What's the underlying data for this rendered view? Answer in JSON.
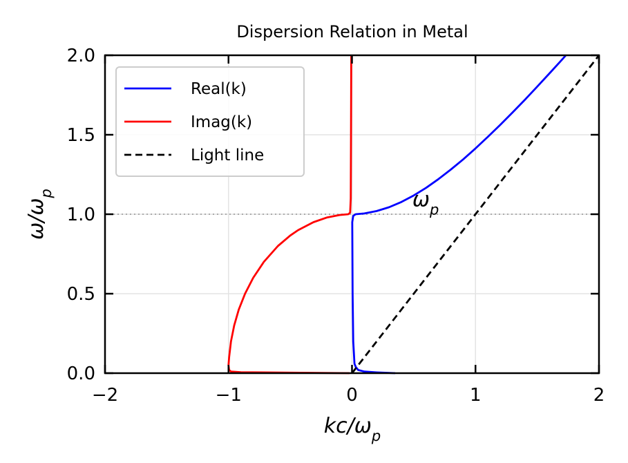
{
  "chart_data": {
    "type": "line",
    "title": "Dispersion Relation in Metal",
    "xlabel": "kc/ωp",
    "ylabel": "ω/ωp",
    "xlim": [
      -2,
      2
    ],
    "ylim": [
      0,
      2
    ],
    "xticks": [
      {
        "v": -2,
        "label": "−2"
      },
      {
        "v": -1,
        "label": "−1"
      },
      {
        "v": 0,
        "label": "0"
      },
      {
        "v": 1,
        "label": "1"
      },
      {
        "v": 2,
        "label": "2"
      }
    ],
    "yticks": [
      {
        "v": 0,
        "label": "0.0"
      },
      {
        "v": 0.5,
        "label": "0.5"
      },
      {
        "v": 1,
        "label": "1.0"
      },
      {
        "v": 1.5,
        "label": "1.5"
      },
      {
        "v": 2,
        "label": "2.0"
      }
    ],
    "grid": true,
    "legend_position": "top-left",
    "hline": {
      "y": 1.0,
      "style": "dotted",
      "color": "#aaaaaa"
    },
    "annotation": {
      "text": "ωp",
      "x": 0.5,
      "y": 1.05
    },
    "series": [
      {
        "name": "Real(k)",
        "color": "#0000ff",
        "style": "solid",
        "points": [
          [
            0.35,
            0.0
          ],
          [
            0.2,
            0.005
          ],
          [
            0.1,
            0.01
          ],
          [
            0.05,
            0.02
          ],
          [
            0.03,
            0.04
          ],
          [
            0.02,
            0.06
          ],
          [
            0.01,
            0.2
          ],
          [
            0.005,
            0.5
          ],
          [
            0.003,
            0.8
          ],
          [
            0.002,
            0.95
          ],
          [
            0.01,
            0.99
          ],
          [
            0.03,
            1.0
          ],
          [
            0.1,
            1.005
          ],
          [
            0.2,
            1.02
          ],
          [
            0.3,
            1.044
          ],
          [
            0.4,
            1.077
          ],
          [
            0.5,
            1.118
          ],
          [
            0.6,
            1.166
          ],
          [
            0.7,
            1.221
          ],
          [
            0.8,
            1.281
          ],
          [
            0.9,
            1.345
          ],
          [
            1.0,
            1.414
          ],
          [
            1.1,
            1.487
          ],
          [
            1.2,
            1.562
          ],
          [
            1.3,
            1.64
          ],
          [
            1.4,
            1.72
          ],
          [
            1.5,
            1.803
          ],
          [
            1.6,
            1.887
          ],
          [
            1.7,
            1.972
          ],
          [
            1.732,
            2.0
          ]
        ]
      },
      {
        "name": "Imag(k)",
        "color": "#ff0000",
        "style": "solid",
        "points": [
          [
            -0.02,
            0.0
          ],
          [
            -0.5,
            0.003
          ],
          [
            -0.9,
            0.006
          ],
          [
            -0.98,
            0.01
          ],
          [
            -0.995,
            0.02
          ],
          [
            -1.0,
            0.05
          ],
          [
            -0.995,
            0.1
          ],
          [
            -0.98,
            0.2
          ],
          [
            -0.954,
            0.3
          ],
          [
            -0.917,
            0.4
          ],
          [
            -0.866,
            0.5
          ],
          [
            -0.8,
            0.6
          ],
          [
            -0.714,
            0.7
          ],
          [
            -0.6,
            0.8
          ],
          [
            -0.5,
            0.866
          ],
          [
            -0.436,
            0.9
          ],
          [
            -0.312,
            0.95
          ],
          [
            -0.2,
            0.98
          ],
          [
            -0.1,
            0.995
          ],
          [
            -0.03,
            1.0
          ],
          [
            -0.015,
            1.01
          ],
          [
            -0.01,
            1.1
          ],
          [
            -0.008,
            1.5
          ],
          [
            -0.006,
            2.0
          ]
        ]
      },
      {
        "name": "Light line",
        "color": "#000000",
        "style": "dashed",
        "points": [
          [
            0,
            0
          ],
          [
            2,
            2
          ]
        ]
      }
    ]
  }
}
